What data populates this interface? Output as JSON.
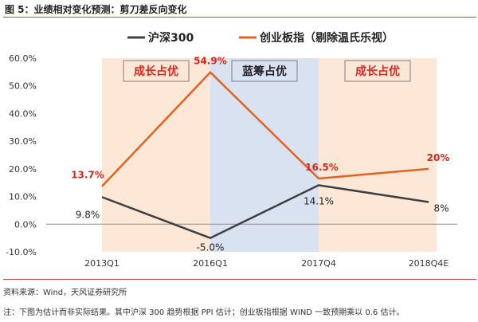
{
  "figure": {
    "title": "图 5：业绩相对变化预测：剪刀差反向变化",
    "source": "资料来源：Wind，天风证券研究所",
    "note": "注：下图为估计而非实际结果。其中沪深 300 趋势根据 PPI 估计；创业板指根据 WIND 一致预期乘以 0.6 估计。"
  },
  "chart_data": {
    "type": "line",
    "title": "",
    "categories": [
      "2013Q1",
      "2016Q1",
      "2017Q4",
      "2018Q4E"
    ],
    "ylim": [
      -10,
      60
    ],
    "yticks": [
      -10,
      0,
      10,
      20,
      30,
      40,
      50,
      60
    ],
    "ytick_labels": [
      "-10.0%",
      "0.0%",
      "10.0%",
      "20.0%",
      "30.0%",
      "40.0%",
      "50.0%",
      "60.0%"
    ],
    "grid": false,
    "legend_position": "top",
    "series": [
      {
        "name": "沪深300",
        "legend_label": "沪深300",
        "color": "#404040",
        "values": [
          9.8,
          -5.0,
          14.1,
          8
        ],
        "labels": [
          "9.8%",
          "-5.0%",
          "14.1%",
          "8%"
        ],
        "label_color": "#222222"
      },
      {
        "name": "创业板指（剔除温氏乐视）",
        "legend_label": "创业板指（剔除温氏乐视）",
        "color": "#e2621f",
        "values": [
          13.7,
          54.9,
          16.5,
          20
        ],
        "labels": [
          "13.7%",
          "54.9%",
          "16.5%",
          "20%"
        ],
        "label_color": "#d7261c"
      }
    ],
    "regions": [
      {
        "label": "成长占优",
        "from": 0,
        "to": 1,
        "fill": "#fde7d6",
        "label_color": "#d7261c"
      },
      {
        "label": "蓝筹占优",
        "from": 1,
        "to": 2,
        "fill": "#d9e2f1",
        "label_color": "#1f1f1f"
      },
      {
        "label": "成长占优",
        "from": 2,
        "to": 3,
        "fill": "#fde7d6",
        "label_color": "#d7261c"
      }
    ]
  }
}
